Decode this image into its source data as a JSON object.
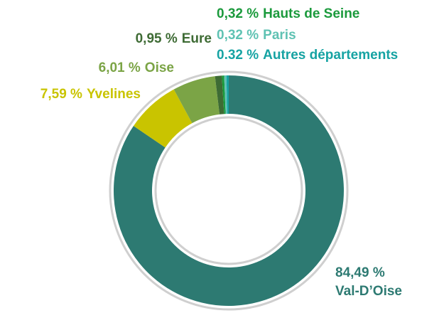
{
  "chart_data": {
    "type": "donut",
    "categories": [
      "Val-D’Oise",
      "Yvelines",
      "Oise",
      "Eure",
      "Hauts de Seine",
      "Paris",
      "Autres départements"
    ],
    "values": [
      84.49,
      7.59,
      6.01,
      0.95,
      0.32,
      0.32,
      0.32
    ],
    "value_labels": [
      "84,49 %",
      "7,59 %",
      "6,01 %",
      "0,95 %",
      "0,32 %",
      "0,32 %",
      "0.32 %"
    ],
    "colors": [
      "#2d7a72",
      "#c9c400",
      "#7ba446",
      "#3e6b34",
      "#1b9a3c",
      "#5fc2b3",
      "#16a3a3"
    ]
  }
}
